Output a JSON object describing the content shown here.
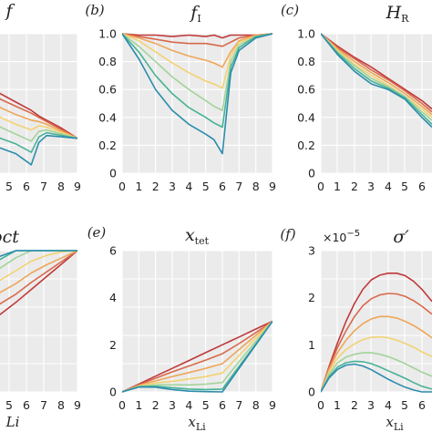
{
  "palette": [
    "#c0393b",
    "#d8694a",
    "#eea65a",
    "#f3d272",
    "#a3d39a",
    "#48b295",
    "#2b8cac"
  ],
  "chart_data": [
    {
      "type": "line",
      "panel_label": "",
      "title": "f",
      "title_sub": "",
      "ylim": [
        0,
        1
      ],
      "yticks": [],
      "xticks": [
        "5",
        "6",
        "7",
        "8",
        "9"
      ],
      "xlim": [
        3.5,
        9.0
      ],
      "xlabel": "",
      "xlabel_sub": "",
      "x": [
        3.5,
        4,
        5,
        6,
        6.5,
        7,
        8,
        9
      ],
      "series": [
        {
          "values": [
            0.6,
            0.57,
            0.51,
            0.45,
            0.41,
            0.38,
            0.32,
            0.25
          ]
        },
        {
          "values": [
            0.57,
            0.53,
            0.48,
            0.43,
            0.4,
            0.37,
            0.31,
            0.25
          ]
        },
        {
          "values": [
            0.52,
            0.47,
            0.42,
            0.38,
            0.37,
            0.35,
            0.3,
            0.25
          ]
        },
        {
          "values": [
            0.46,
            0.4,
            0.35,
            0.31,
            0.34,
            0.33,
            0.29,
            0.25
          ]
        },
        {
          "values": [
            0.38,
            0.33,
            0.28,
            0.23,
            0.3,
            0.31,
            0.28,
            0.25
          ]
        },
        {
          "values": [
            0.29,
            0.25,
            0.21,
            0.15,
            0.26,
            0.29,
            0.27,
            0.25
          ]
        },
        {
          "values": [
            0.2,
            0.18,
            0.14,
            0.06,
            0.22,
            0.27,
            0.26,
            0.25
          ]
        }
      ]
    },
    {
      "type": "line",
      "panel_label": "(b)",
      "title": "f",
      "title_sub": "I",
      "ylim": [
        0,
        1
      ],
      "yticks": [
        "0",
        "0.2",
        "0.4",
        "0.6",
        "0.8",
        "1.0"
      ],
      "xticks": [
        "0",
        "1",
        "2",
        "3",
        "4",
        "5",
        "6",
        "7",
        "8",
        "9"
      ],
      "xlim": [
        0,
        9
      ],
      "xlabel": "",
      "xlabel_sub": "",
      "x": [
        0,
        1,
        2,
        3,
        4,
        5,
        5.5,
        6,
        6.5,
        7,
        8,
        9
      ],
      "series": [
        {
          "values": [
            1.0,
            0.99,
            0.99,
            0.98,
            0.99,
            0.98,
            0.99,
            0.97,
            0.99,
            0.99,
            0.99,
            1.0
          ]
        },
        {
          "values": [
            1.0,
            0.98,
            0.96,
            0.94,
            0.93,
            0.93,
            0.92,
            0.91,
            0.94,
            0.97,
            0.99,
            1.0
          ]
        },
        {
          "values": [
            1.0,
            0.97,
            0.93,
            0.88,
            0.84,
            0.81,
            0.79,
            0.76,
            0.87,
            0.95,
            0.99,
            1.0
          ]
        },
        {
          "values": [
            1.0,
            0.95,
            0.87,
            0.79,
            0.72,
            0.66,
            0.64,
            0.61,
            0.84,
            0.94,
            0.98,
            1.0
          ]
        },
        {
          "values": [
            1.0,
            0.91,
            0.8,
            0.69,
            0.6,
            0.52,
            0.48,
            0.45,
            0.8,
            0.92,
            0.98,
            1.0
          ]
        },
        {
          "values": [
            1.0,
            0.87,
            0.7,
            0.57,
            0.47,
            0.4,
            0.36,
            0.33,
            0.76,
            0.9,
            0.98,
            1.0
          ]
        },
        {
          "values": [
            1.0,
            0.82,
            0.6,
            0.45,
            0.35,
            0.28,
            0.24,
            0.14,
            0.72,
            0.88,
            0.97,
            1.0
          ]
        }
      ]
    },
    {
      "type": "line",
      "panel_label": "(c)",
      "title": "H",
      "title_sub": "R",
      "ylim": [
        0,
        1
      ],
      "yticks": [
        "0",
        "0.2",
        "0.4",
        "0.6",
        "0.8",
        "1.0"
      ],
      "xticks": [
        "0",
        "1",
        "2",
        "3",
        "4",
        "5",
        "6"
      ],
      "xlim": [
        0,
        6.6
      ],
      "xlabel": "",
      "xlabel_sub": "",
      "x": [
        0,
        1,
        2,
        3,
        4,
        5,
        6,
        6.6
      ],
      "series": [
        {
          "values": [
            1.0,
            0.91,
            0.83,
            0.76,
            0.68,
            0.6,
            0.52,
            0.46
          ]
        },
        {
          "values": [
            1.0,
            0.9,
            0.82,
            0.74,
            0.67,
            0.59,
            0.5,
            0.44
          ]
        },
        {
          "values": [
            1.0,
            0.89,
            0.8,
            0.72,
            0.65,
            0.57,
            0.48,
            0.42
          ]
        },
        {
          "values": [
            1.0,
            0.88,
            0.78,
            0.7,
            0.63,
            0.55,
            0.46,
            0.4
          ]
        },
        {
          "values": [
            1.0,
            0.87,
            0.77,
            0.68,
            0.62,
            0.55,
            0.44,
            0.38
          ]
        },
        {
          "values": [
            1.0,
            0.86,
            0.75,
            0.66,
            0.61,
            0.54,
            0.42,
            0.35
          ]
        },
        {
          "values": [
            1.0,
            0.85,
            0.73,
            0.64,
            0.6,
            0.53,
            0.4,
            0.33
          ]
        }
      ]
    },
    {
      "type": "line",
      "panel_label": "",
      "title": "oct",
      "title_sub": "",
      "ylim": [
        0,
        6
      ],
      "yticks": [],
      "xticks": [
        "5",
        "6",
        "7",
        "8",
        "9"
      ],
      "xlim": [
        3.5,
        9.0
      ],
      "xlabel": "Li",
      "xlabel_sub": "",
      "x": [
        3.5,
        5,
        6,
        7,
        8,
        9
      ],
      "series": [
        {
          "values": [
            3.05,
            3.8,
            4.35,
            4.9,
            5.45,
            6.0
          ]
        },
        {
          "values": [
            3.55,
            4.15,
            4.65,
            5.1,
            5.55,
            6.0
          ]
        },
        {
          "values": [
            4.05,
            4.6,
            5.05,
            5.4,
            5.7,
            6.0
          ]
        },
        {
          "values": [
            4.55,
            5.15,
            5.55,
            5.8,
            5.95,
            6.0
          ]
        },
        {
          "values": [
            5.05,
            5.7,
            6.0,
            6.0,
            6.0,
            6.0
          ]
        },
        {
          "values": [
            5.45,
            6.0,
            6.0,
            6.0,
            6.0,
            6.0
          ]
        },
        {
          "values": [
            5.65,
            6.0,
            6.0,
            6.0,
            6.0,
            6.0
          ]
        }
      ]
    },
    {
      "type": "line",
      "panel_label": "(e)",
      "title": "x",
      "title_sub": "tet",
      "ylim": [
        0,
        6
      ],
      "yticks": [
        "0",
        "2",
        "4",
        "6"
      ],
      "xticks": [
        "0",
        "1",
        "2",
        "3",
        "4",
        "5",
        "6",
        "7",
        "8",
        "9"
      ],
      "xlim": [
        0,
        9
      ],
      "xlabel": "x",
      "xlabel_sub": "Li",
      "x": [
        0,
        1,
        2,
        3,
        4,
        5,
        6,
        7,
        8,
        9
      ],
      "series": [
        {
          "values": [
            0,
            0.33,
            0.67,
            1.0,
            1.33,
            1.67,
            2.0,
            2.33,
            2.67,
            3.0
          ]
        },
        {
          "values": [
            0,
            0.3,
            0.58,
            0.85,
            1.1,
            1.35,
            1.62,
            2.05,
            2.52,
            3.0
          ]
        },
        {
          "values": [
            0,
            0.27,
            0.47,
            0.65,
            0.82,
            1.0,
            1.2,
            1.8,
            2.4,
            3.0
          ]
        },
        {
          "values": [
            0,
            0.25,
            0.38,
            0.45,
            0.55,
            0.65,
            0.8,
            1.55,
            2.28,
            3.0
          ]
        },
        {
          "values": [
            0,
            0.23,
            0.3,
            0.3,
            0.3,
            0.33,
            0.4,
            1.28,
            2.15,
            3.0
          ]
        },
        {
          "values": [
            0,
            0.22,
            0.24,
            0.18,
            0.12,
            0.1,
            0.12,
            1.08,
            2.04,
            3.0
          ]
        },
        {
          "values": [
            0,
            0.21,
            0.2,
            0.1,
            0.03,
            0.01,
            0.0,
            1.0,
            2.0,
            3.0
          ]
        }
      ]
    },
    {
      "type": "line",
      "panel_label": "(f)",
      "title": "σ′",
      "title_sub": "",
      "ylim": [
        0,
        3
      ],
      "yticks": [
        "0",
        "1",
        "2",
        "3"
      ],
      "xticks": [
        "0",
        "1",
        "2",
        "3",
        "4",
        "5",
        "6"
      ],
      "xlim": [
        0,
        6.6
      ],
      "xlabel": "x",
      "xlabel_sub": "Li",
      "multiplier": "×10",
      "multiplier_exp": "−5",
      "x": [
        0,
        0.5,
        1,
        1.5,
        2,
        2.5,
        3,
        3.5,
        4,
        4.5,
        5,
        5.5,
        6,
        6.6
      ],
      "series": [
        {
          "values": [
            0,
            0.55,
            1.05,
            1.5,
            1.88,
            2.18,
            2.38,
            2.48,
            2.52,
            2.52,
            2.47,
            2.35,
            2.18,
            1.92
          ]
        },
        {
          "values": [
            0,
            0.52,
            0.95,
            1.3,
            1.6,
            1.83,
            1.98,
            2.06,
            2.09,
            2.08,
            2.03,
            1.94,
            1.82,
            1.65
          ]
        },
        {
          "values": [
            0,
            0.48,
            0.84,
            1.1,
            1.3,
            1.45,
            1.55,
            1.6,
            1.6,
            1.57,
            1.5,
            1.41,
            1.3,
            1.15
          ]
        },
        {
          "values": [
            0,
            0.43,
            0.72,
            0.9,
            1.02,
            1.11,
            1.16,
            1.17,
            1.15,
            1.1,
            1.03,
            0.95,
            0.85,
            0.75
          ]
        },
        {
          "values": [
            0,
            0.38,
            0.62,
            0.74,
            0.8,
            0.83,
            0.83,
            0.8,
            0.75,
            0.68,
            0.6,
            0.51,
            0.42,
            0.33
          ]
        },
        {
          "values": [
            0,
            0.33,
            0.53,
            0.62,
            0.65,
            0.64,
            0.6,
            0.53,
            0.45,
            0.37,
            0.29,
            0.2,
            0.12,
            0.06
          ]
        },
        {
          "values": [
            0,
            0.3,
            0.48,
            0.57,
            0.59,
            0.55,
            0.47,
            0.37,
            0.27,
            0.18,
            0.1,
            0.04,
            0.0,
            0.0
          ]
        }
      ]
    }
  ]
}
